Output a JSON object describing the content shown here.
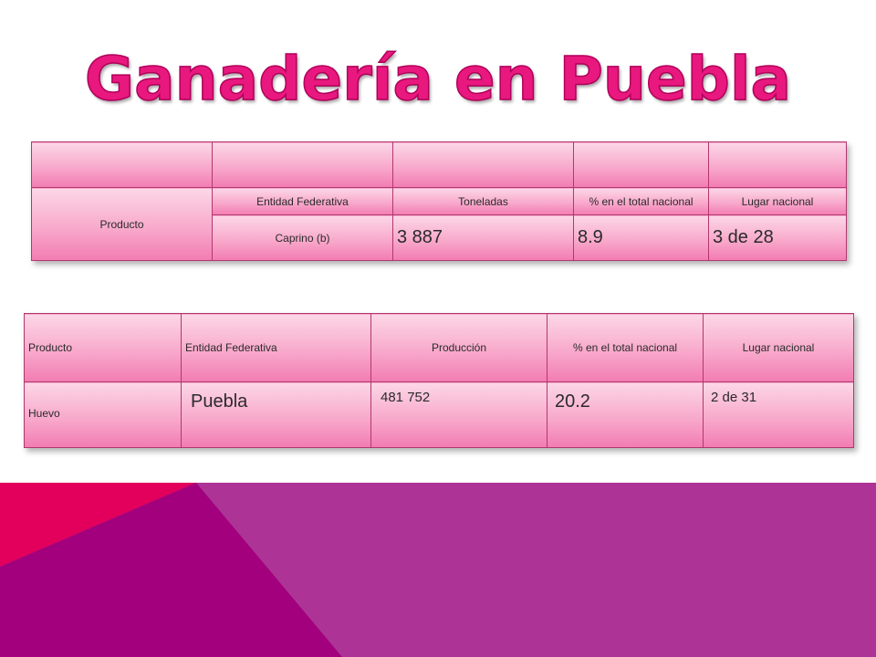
{
  "title": "Ganadería en Puebla",
  "table1": {
    "headers": {
      "producto": "Producto",
      "entidad": "Entidad Federativa",
      "toneladas": "Toneladas",
      "porcentaje": "% en el total nacional",
      "lugar": "Lugar nacional"
    },
    "row": {
      "entidad": "Caprino (b)",
      "toneladas": "3 887",
      "porcentaje": "8.9",
      "lugar": "3 de 28"
    }
  },
  "table2": {
    "headers": {
      "producto": "Producto",
      "entidad": "Entidad Federativa",
      "produccion": "Producción",
      "porcentaje": "% en el total nacional",
      "lugar": "Lugar nacional"
    },
    "row": {
      "producto": "Huevo",
      "entidad": "Puebla",
      "produccion": "481 752",
      "porcentaje": "20.2",
      "lugar": "2 de 31"
    }
  },
  "colors": {
    "title": "#e8187f",
    "cell_top": "#fcd7e7",
    "cell_bottom": "#f27cb2",
    "deco_magenta": "#ad3496",
    "deco_red": "#e2005c",
    "deco_purple": "#a3007e"
  }
}
